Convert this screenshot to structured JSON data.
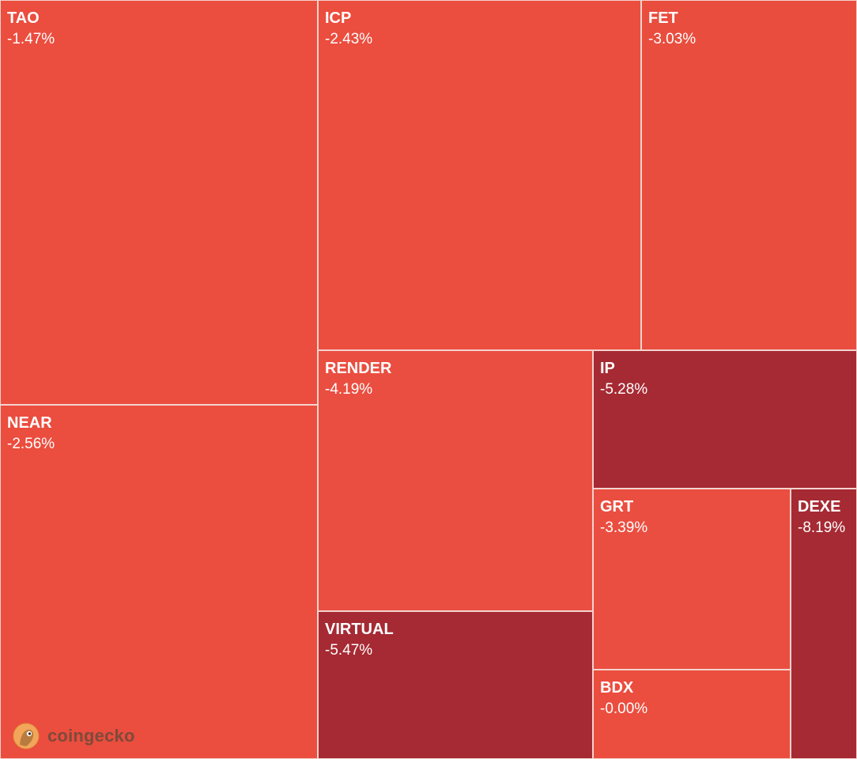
{
  "chart_data": {
    "type": "treemap",
    "title": "",
    "tiles": [
      {
        "symbol": "TAO",
        "change": "-1.47%",
        "color": "#EB4D3E"
      },
      {
        "symbol": "ICP",
        "change": "-2.43%",
        "color": "#EB4D3E"
      },
      {
        "symbol": "FET",
        "change": "-3.03%",
        "color": "#E94D3E"
      },
      {
        "symbol": "NEAR",
        "change": "-2.56%",
        "color": "#EB4D3E"
      },
      {
        "symbol": "RENDER",
        "change": "-4.19%",
        "color": "#EA4E40"
      },
      {
        "symbol": "IP",
        "change": "-5.28%",
        "color": "#A62A33"
      },
      {
        "symbol": "GRT",
        "change": "-3.39%",
        "color": "#EA4E40"
      },
      {
        "symbol": "DEXE",
        "change": "-8.19%",
        "color": "#A62A33"
      },
      {
        "symbol": "VIRTUAL",
        "change": "-5.47%",
        "color": "#A62A33"
      },
      {
        "symbol": "BDX",
        "change": "-0.00%",
        "color": "#EB4D3E"
      }
    ]
  },
  "brand": {
    "name": "coingecko"
  }
}
